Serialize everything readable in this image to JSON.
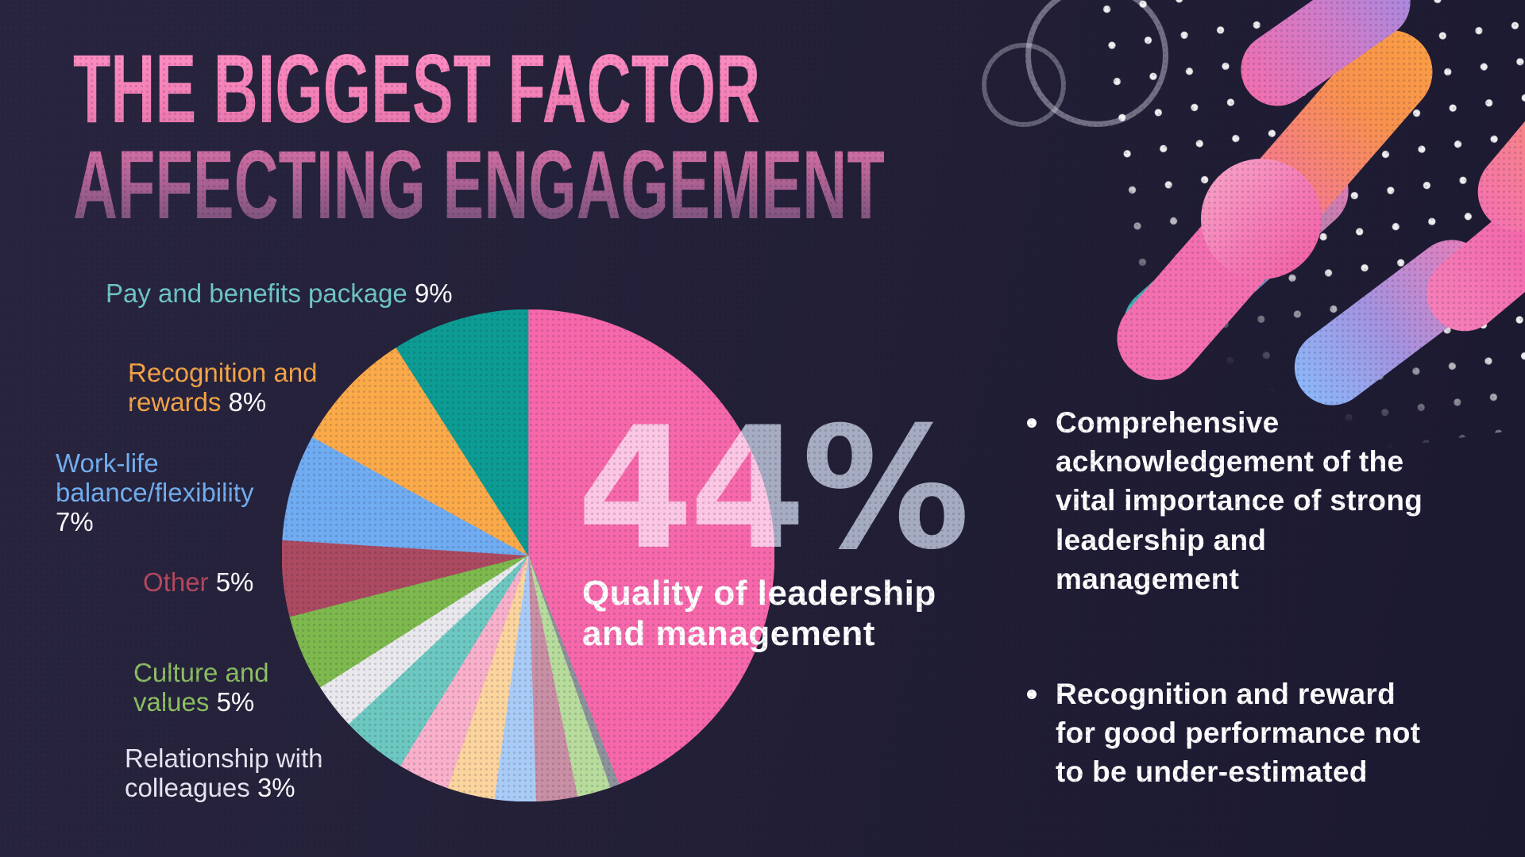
{
  "title": {
    "line1": "THE BIGGEST FACTOR",
    "line2": "AFFECTING ENGAGEMENT"
  },
  "chart_data": {
    "type": "pie",
    "title": "The biggest factor affecting engagement",
    "unit": "percent",
    "start_angle_deg": 0,
    "direction": "clockwise",
    "slices": [
      {
        "label": "Quality of leadership and management",
        "value": 44,
        "color": "#f768ab"
      },
      {
        "label": "unlabeled-a",
        "value": 0.6,
        "color": "#8d939c"
      },
      {
        "label": "unlabeled-b",
        "value": 2.2,
        "color": "#b7dc9c"
      },
      {
        "label": "unlabeled-c",
        "value": 2.7,
        "color": "#c98fa4"
      },
      {
        "label": "unlabeled-d",
        "value": 2.7,
        "color": "#a9ccf7"
      },
      {
        "label": "unlabeled-e",
        "value": 3.1,
        "color": "#fbd49e"
      },
      {
        "label": "unlabeled-f",
        "value": 3.4,
        "color": "#f9b0cb"
      },
      {
        "label": "unlabeled-g",
        "value": 4.3,
        "color": "#6cc8c0"
      },
      {
        "label": "Relationship with colleagues",
        "value": 3,
        "color": "#e9e8ec"
      },
      {
        "label": "Culture and values",
        "value": 5,
        "color": "#7eb94e"
      },
      {
        "label": "Other",
        "value": 5,
        "color": "#ab4a61"
      },
      {
        "label": "Work-life balance/flexibility",
        "value": 7,
        "color": "#70acf1"
      },
      {
        "label": "Recognition and rewards",
        "value": 8,
        "color": "#fbaa4a"
      },
      {
        "label": "Pay and benefits package",
        "value": 9,
        "color": "#0d9c94"
      }
    ],
    "center_callout": {
      "value": "44%",
      "label": "Quality of leadership\nand management"
    }
  },
  "pie_labels": [
    {
      "id": "pay",
      "lines": [
        [
          {
            "t": "Pay and benefits package ",
            "c": "#6fc7c6"
          },
          {
            "t": "9%",
            "c": "#ffffff"
          }
        ]
      ]
    },
    {
      "id": "recognition",
      "lines": [
        [
          {
            "t": "Recognition and",
            "c": "#f5a447"
          }
        ],
        [
          {
            "t": "rewards ",
            "c": "#f5a447"
          },
          {
            "t": "8%",
            "c": "#ffffff"
          }
        ]
      ]
    },
    {
      "id": "worklife",
      "lines": [
        [
          {
            "t": "Work-life",
            "c": "#72aff0"
          }
        ],
        [
          {
            "t": "balance/flexibility",
            "c": "#72aff0"
          }
        ],
        [
          {
            "t": "7%",
            "c": "#ffffff"
          }
        ]
      ]
    },
    {
      "id": "other",
      "lines": [
        [
          {
            "t": "Other ",
            "c": "#b5485e"
          },
          {
            "t": "5%",
            "c": "#ffffff"
          }
        ]
      ]
    },
    {
      "id": "culture",
      "lines": [
        [
          {
            "t": "Culture and",
            "c": "#8dc063"
          }
        ],
        [
          {
            "t": "values ",
            "c": "#8dc063"
          },
          {
            "t": "5%",
            "c": "#ffffff"
          }
        ]
      ]
    },
    {
      "id": "relationship",
      "lines": [
        [
          {
            "t": "Relationship with",
            "c": "#e6e4f0"
          }
        ],
        [
          {
            "t": "colleagues ",
            "c": "#e6e4f0"
          },
          {
            "t": "3%",
            "c": "#ffffff"
          }
        ]
      ]
    }
  ],
  "bullets": [
    {
      "text": "Comprehensive\nacknowledgement of the\nvital importance of strong\nleadership and\nmanagement"
    },
    {
      "text": "Recognition and reward\nfor good performance not\nto be under-estimated"
    }
  ],
  "colors": {
    "background": "#232038",
    "headline_pink": "#f97fb8",
    "callout_gray": "#98a0b0",
    "text_white": "#ffffff"
  }
}
